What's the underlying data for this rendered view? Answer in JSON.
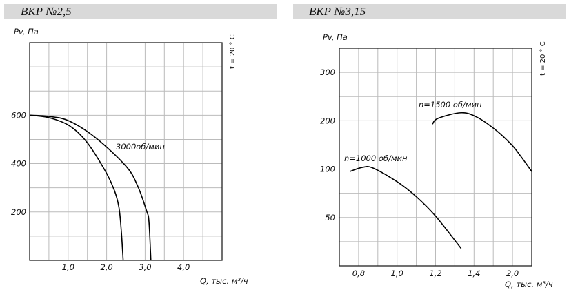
{
  "chart_data": [
    {
      "type": "line",
      "title": "ВКР №2,5",
      "xlabel": "Q, тыс. м³/ч",
      "ylabel": "Pv, Па",
      "note": "t = 20 ° C",
      "xlim": [
        0,
        5.0
      ],
      "ylim": [
        0,
        900
      ],
      "grid": true,
      "xticks": [
        {
          "v": 1.0,
          "label": "1,0"
        },
        {
          "v": 2.0,
          "label": "2,0"
        },
        {
          "v": 3.0,
          "label": "3,0"
        },
        {
          "v": 4.0,
          "label": "4,0"
        }
      ],
      "yticks": [
        {
          "v": 200,
          "label": "200"
        },
        {
          "v": 400,
          "label": "400"
        },
        {
          "v": 600,
          "label": "600"
        }
      ],
      "series": [
        {
          "name": "3000об/мин",
          "label": "3000об/мин",
          "x": [
            0,
            0.5,
            1.03,
            1.73,
            2.5,
            2.8,
            3.04,
            3.1,
            3.15
          ],
          "y": [
            600,
            595,
            576,
            505,
            390,
            310,
            204,
            160,
            0
          ]
        },
        {
          "name": "inner",
          "label": "",
          "x": [
            0,
            0.5,
            1.03,
            1.48,
            1.96,
            2.2,
            2.32,
            2.38,
            2.43
          ],
          "y": [
            600,
            590,
            557,
            490,
            371,
            290,
            219,
            124,
            0
          ]
        }
      ]
    },
    {
      "type": "line",
      "title": "ВКР №3,15",
      "xlabel": "Q, тыс. м³/ч",
      "ylabel": "Pv, Па",
      "note": "t = 20 ° C",
      "xticks": [
        {
          "v": 0.8,
          "label": "0,8"
        },
        {
          "v": 1.0,
          "label": "1,0"
        },
        {
          "v": 1.2,
          "label": "1,2"
        },
        {
          "v": 1.4,
          "label": "1,4"
        },
        {
          "v": 2.0,
          "label": "2,0"
        }
      ],
      "yticks": [
        {
          "v": 50,
          "label": "50"
        },
        {
          "v": 100,
          "label": "100"
        },
        {
          "v": 200,
          "label": "200"
        },
        {
          "v": 300,
          "label": "300"
        }
      ],
      "grid": true,
      "series": [
        {
          "name": "n=1000 об/мин",
          "label": "n=1000 об/мин",
          "x": [
            0.754,
            0.819,
            0.873,
            1.0,
            1.1,
            1.202,
            1.333
          ],
          "y": [
            97.5,
            103.5,
            102.5,
            87,
            71.5,
            51,
            18
          ]
        },
        {
          "name": "n=1500 об/мин",
          "label": "n=1500 об/мин",
          "x": [
            1.184,
            1.213,
            1.333,
            1.451,
            1.736,
            1.988,
            2.132,
            2.3
          ],
          "y": [
            193,
            205,
            216.5,
            207,
            181,
            150,
            126,
            97.5
          ]
        }
      ]
    }
  ]
}
